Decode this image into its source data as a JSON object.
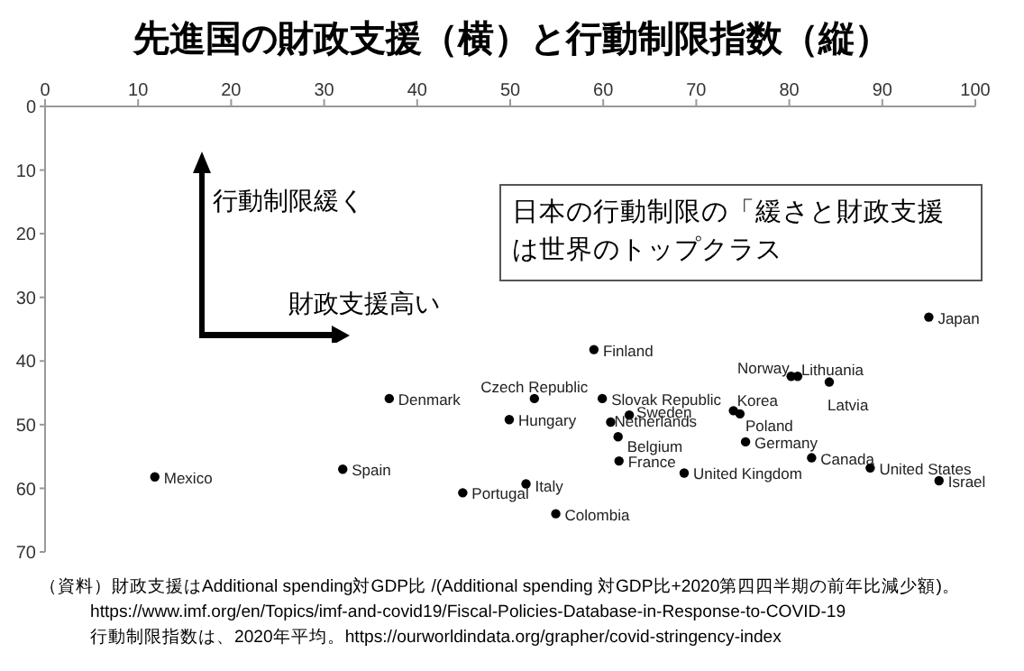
{
  "chart_data": {
    "type": "scatter",
    "title": "先進国の財政支援（横）と行動制限指数（縦）",
    "xlim": [
      0,
      100
    ],
    "xticks": [
      0,
      10,
      20,
      30,
      40,
      50,
      60,
      70,
      80,
      90,
      100
    ],
    "ylim": [
      70,
      0
    ],
    "yticks": [
      0,
      10,
      20,
      30,
      40,
      50,
      60,
      70
    ],
    "grid": false,
    "legend": false,
    "marker": "circle",
    "series": [
      {
        "name": "Japan",
        "color": "#000000",
        "x": [
          95.0
        ],
        "values": [
          33.1
        ]
      },
      {
        "name": "Finland",
        "color": "#000000",
        "x": [
          59.0
        ],
        "values": [
          38.2
        ]
      },
      {
        "name": "Norway",
        "color": "#000000",
        "x": [
          80.2
        ],
        "values": [
          42.4
        ]
      },
      {
        "name": "Lithuania",
        "color": "#000000",
        "x": [
          80.9
        ],
        "values": [
          42.4
        ]
      },
      {
        "name": "Latvia",
        "color": "#000000",
        "x": [
          84.3
        ],
        "values": [
          43.3
        ]
      },
      {
        "name": "Czech Republic",
        "color": "#000000",
        "x": [
          52.6
        ],
        "values": [
          45.9
        ]
      },
      {
        "name": "Slovak Republic",
        "color": "#000000",
        "x": [
          59.9
        ],
        "values": [
          45.9
        ]
      },
      {
        "name": "Denmark",
        "color": "#000000",
        "x": [
          37.0
        ],
        "values": [
          45.9
        ]
      },
      {
        "name": "Hungary",
        "color": "#000000",
        "x": [
          49.9
        ],
        "values": [
          49.2
        ]
      },
      {
        "name": "Sweden",
        "color": "#000000",
        "x": [
          62.8
        ],
        "values": [
          48.5
        ]
      },
      {
        "name": "Netherlands",
        "color": "#000000",
        "x": [
          60.8
        ],
        "values": [
          49.6
        ]
      },
      {
        "name": "Korea",
        "color": "#000000",
        "x": [
          74.0
        ],
        "values": [
          47.8
        ]
      },
      {
        "name": "Poland",
        "color": "#000000",
        "x": [
          74.7
        ],
        "values": [
          48.3
        ]
      },
      {
        "name": "Belgium",
        "color": "#000000",
        "x": [
          61.6
        ],
        "values": [
          51.9
        ]
      },
      {
        "name": "Germany",
        "color": "#000000",
        "x": [
          75.3
        ],
        "values": [
          52.7
        ]
      },
      {
        "name": "France",
        "color": "#000000",
        "x": [
          61.7
        ],
        "values": [
          55.7
        ]
      },
      {
        "name": "Canada",
        "color": "#000000",
        "x": [
          82.4
        ],
        "values": [
          55.2
        ]
      },
      {
        "name": "United Kingdom",
        "color": "#000000",
        "x": [
          68.7
        ],
        "values": [
          57.6
        ]
      },
      {
        "name": "United States",
        "color": "#000000",
        "x": [
          88.7
        ],
        "values": [
          56.8
        ]
      },
      {
        "name": "Israel",
        "color": "#000000",
        "x": [
          96.1
        ],
        "values": [
          58.8
        ]
      },
      {
        "name": "Italy",
        "color": "#000000",
        "x": [
          51.7
        ],
        "values": [
          59.3
        ]
      },
      {
        "name": "Portugal",
        "color": "#000000",
        "x": [
          44.9
        ],
        "values": [
          60.7
        ]
      },
      {
        "name": "Colombia",
        "color": "#000000",
        "x": [
          54.9
        ],
        "values": [
          64.0
        ]
      },
      {
        "name": "Mexico",
        "color": "#000000",
        "x": [
          11.8
        ],
        "values": [
          58.2
        ]
      },
      {
        "name": "Spain",
        "color": "#000000",
        "x": [
          32.0
        ],
        "values": [
          57.0
        ]
      }
    ],
    "annotations": [
      "日本の行動制限の「緩さと財政支援は世界のトップクラス",
      "行動制限緩く",
      "財政支援高い",
      "（資料）財政支援はAdditional spending対GDP比 /(Additional spending 対GDP比+2020第四四半期の前年比減少額)。",
      "https://www.imf.org/en/Topics/imf-and-covid19/Fiscal-Policies-Database-in-Response-to-COVID-19",
      "行動制限指数は、2020年平均。https://ourworldindata.org/grapher/covid-stringency-index"
    ]
  }
}
